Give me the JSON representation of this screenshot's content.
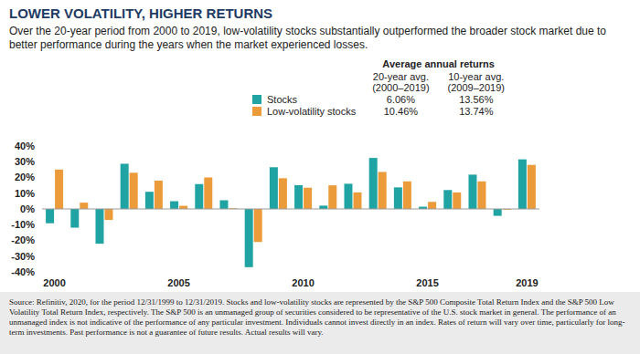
{
  "chart_data": {
    "type": "bar",
    "title": "LOWER VOLATILITY, HIGHER RETURNS",
    "subtitle": "Over the 20-year period from 2000 to 2019, low-volatility stocks substantially outperformed the broader stock market due to better performance during the years when the market experienced losses.",
    "categories": [
      "2000",
      null,
      null,
      null,
      null,
      "2005",
      null,
      null,
      null,
      null,
      "2010",
      null,
      null,
      null,
      null,
      "2015",
      null,
      null,
      null,
      "2019"
    ],
    "series": [
      {
        "name": "Stocks",
        "color": "#1fa3a3",
        "values": [
          -9.1,
          -11.9,
          -22.1,
          28.7,
          10.9,
          4.9,
          15.8,
          5.5,
          -37.0,
          26.5,
          15.1,
          2.1,
          16.0,
          32.4,
          13.7,
          1.4,
          12.0,
          21.8,
          -4.4,
          31.5
        ],
        "averages": [
          "6.06%",
          "13.56%"
        ]
      },
      {
        "name": "Low-volatility stocks",
        "color": "#eb9b3a",
        "values": [
          25.0,
          4.0,
          -7.0,
          23.0,
          18.0,
          2.0,
          20.0,
          0.5,
          -21.0,
          19.5,
          13.5,
          15.0,
          10.5,
          23.5,
          17.5,
          4.5,
          10.5,
          17.5,
          -0.5,
          28.0
        ],
        "averages": [
          "10.46%",
          "13.74%"
        ]
      }
    ],
    "summary_title": "Average annual returns",
    "summary_columns": [
      [
        "20-year avg.",
        "(2000–2019)"
      ],
      [
        "10-year avg.",
        "(2009–2019)"
      ]
    ],
    "ylim": [
      -40,
      40
    ],
    "yticks": [
      {
        "value": -40,
        "label": "-40%"
      },
      {
        "value": -30,
        "label": "-30%"
      },
      {
        "value": -20,
        "label": "-20%"
      },
      {
        "value": -10,
        "label": "-10%"
      },
      {
        "value": 0,
        "label": "0%"
      },
      {
        "value": 10,
        "label": "10%"
      },
      {
        "value": 20,
        "label": "20%"
      },
      {
        "value": 30,
        "label": "30%"
      },
      {
        "value": 40,
        "label": "40%"
      }
    ],
    "grid": false,
    "note": "Source: Refinitiv, 2020, for the period 12/31/1999 to 12/31/2019. Stocks and low-volatility stocks are represented by the S&P 500 Composite Total Return Index and the S&P 500 Low Volatility Total Return Index, respectively. The S&P 500 is an unmanaged group of securities considered to be representative of the U.S. stock market in general. The performance of an unmanaged index is not indicative of the performance of any particular investment. Individuals cannot invest directly in an index. Rates of return will vary over time, particularly for long-term investments. Past performance is not a guarantee of future results. Actual results will vary."
  }
}
